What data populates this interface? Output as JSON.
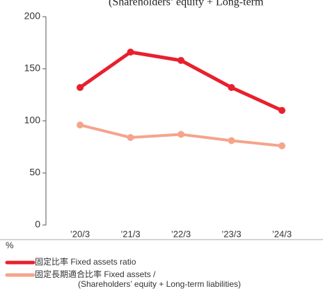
{
  "chart_data": {
    "type": "line",
    "annotation": "(Shareholders’ equity + Long-term",
    "y_unit": "%",
    "categories": [
      "’20/3",
      "’21/3",
      "’22/3",
      "’23/3",
      "’24/3"
    ],
    "series": [
      {
        "name": "固定比率 Fixed assets ratio",
        "color": "#e8202e",
        "values": [
          132,
          166,
          158,
          132,
          110
        ]
      },
      {
        "name": "固定長期適合比率 Fixed assets /",
        "name_line2": "(Shareholders’ equity + Long-term liabilities)",
        "color": "#f5a48c",
        "values": [
          96,
          84,
          87,
          81,
          76
        ]
      }
    ],
    "ylim": [
      0,
      200
    ],
    "yticks": [
      0,
      50,
      100,
      150,
      200
    ]
  }
}
